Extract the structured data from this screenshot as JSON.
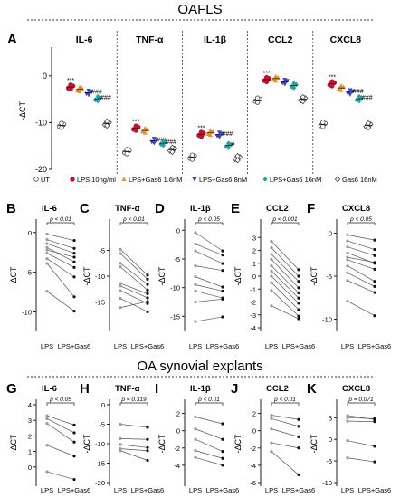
{
  "figure": {
    "section_top": "OAFLS",
    "section_bottom": "OA synovial explants"
  },
  "colors": {
    "ut": "#444444",
    "lps": "#c8102e",
    "lps_gas6_low": "#f08a24",
    "lps_gas6_mid": "#3a3fd0",
    "lps_gas6_high": "#1aa6a0",
    "gas6": "#444444",
    "paired_line": "#555555",
    "paired_lps": "#9a9a9a",
    "paired_gas6": "#111111"
  },
  "chart_data": [
    {
      "panel": "A",
      "type": "scatter",
      "ylabel": "-ΔCT",
      "ylim": [
        -20,
        5
      ],
      "yticks": [
        0,
        -10,
        -20
      ],
      "categories": [
        "UT",
        "LPS 10ng/ml",
        "LPS+Gas6 1.6nM",
        "LPS+Gas6 8nM",
        "LPS+Gas6 16nM",
        "Gas6 16nM"
      ],
      "legend": [
        "UT",
        "LPS 10ng/ml",
        "LPS+Gas6 1.6nM",
        "LPS+Gas6 8nM",
        "LPS+Gas6 16nM",
        "Gas6 16nM"
      ],
      "genes": [
        {
          "name": "IL-6",
          "values": [
            -10.6,
            -2.4,
            -2.9,
            -3.6,
            -4.9,
            -10.2
          ],
          "annotations": [
            "",
            "***",
            "",
            "###",
            "###",
            ""
          ]
        },
        {
          "name": "TNF-α",
          "values": [
            -16.2,
            -11.2,
            -11.7,
            -13.9,
            -14.4,
            -15.8
          ],
          "annotations": [
            "",
            "***",
            "",
            "###",
            "###",
            ""
          ]
        },
        {
          "name": "IL-1β",
          "values": [
            -17.4,
            -12.5,
            -12.2,
            -12.6,
            -14.9,
            -17.6
          ],
          "annotations": [
            "",
            "***",
            "",
            "###",
            "#",
            ""
          ]
        },
        {
          "name": "CCL2",
          "values": [
            -5.2,
            -0.8,
            -0.6,
            -1.3,
            -2.1,
            -5.0
          ],
          "annotations": [
            "",
            "***",
            "",
            "",
            "",
            ""
          ]
        },
        {
          "name": "CXCL8",
          "values": [
            -10.4,
            -1.7,
            -2.6,
            -3.5,
            -4.9,
            -10.6
          ],
          "annotations": [
            "",
            "***",
            "",
            "###",
            "###",
            ""
          ]
        }
      ]
    },
    {
      "panel": "B",
      "type": "line",
      "title": "IL-6",
      "ylabel": "-ΔCT",
      "categories": [
        "LPS",
        "LPS+Gas6"
      ],
      "pvalue": "p < 0.01",
      "ylim": [
        -12,
        1
      ],
      "yticks": [
        0,
        -5,
        -10
      ],
      "pairs": [
        [
          -0.2,
          -1.0
        ],
        [
          -0.9,
          -2.0
        ],
        [
          -1.4,
          -2.6
        ],
        [
          -1.9,
          -3.7
        ],
        [
          -2.6,
          -4.4
        ],
        [
          -3.3,
          -5.6
        ],
        [
          -3.9,
          -8.1
        ],
        [
          -7.4,
          -9.9
        ],
        [
          -2.2,
          -3.1
        ]
      ]
    },
    {
      "panel": "C",
      "type": "line",
      "title": "TNF-α",
      "ylabel": "-ΔCT",
      "categories": [
        "LPS",
        "LPS+Gas6"
      ],
      "pvalue": "p < 0.01",
      "ylim": [
        -20,
        0
      ],
      "yticks": [
        -5,
        -10,
        -15
      ],
      "pairs": [
        [
          -4.8,
          -9.8
        ],
        [
          -5.6,
          -10.6
        ],
        [
          -7.5,
          -11.6
        ],
        [
          -8.2,
          -12.7
        ],
        [
          -11.4,
          -13.4
        ],
        [
          -11.9,
          -14.2
        ],
        [
          -12.8,
          -15.3
        ],
        [
          -14.3,
          -16.9
        ],
        [
          -16.1,
          -14.9
        ]
      ]
    },
    {
      "panel": "D",
      "type": "line",
      "title": "IL-1β",
      "ylabel": "-ΔCT",
      "categories": [
        "LPS",
        "LPS+Gas6"
      ],
      "pvalue": "p < 0.05",
      "ylim": [
        -17,
        1
      ],
      "yticks": [
        0,
        -5,
        -10,
        -15
      ],
      "pairs": [
        [
          -0.4,
          -3.6
        ],
        [
          -2.4,
          -4.3
        ],
        [
          -3.6,
          -5.8
        ],
        [
          -6.2,
          -7.0
        ],
        [
          -8.1,
          -9.9
        ],
        [
          -9.5,
          -10.6
        ],
        [
          -10.6,
          -11.8
        ],
        [
          -12.5,
          -12.0
        ],
        [
          -15.9,
          -15.1
        ]
      ]
    },
    {
      "panel": "E",
      "type": "line",
      "title": "CCL2",
      "ylabel": "-ΔCT",
      "categories": [
        "LPS",
        "LPS+Gas6"
      ],
      "pvalue": "p < 0.001",
      "ylim": [
        -4,
        4
      ],
      "yticks": [
        3,
        2,
        1,
        0,
        -1,
        -2,
        -3,
        -4
      ],
      "pairs": [
        [
          2.7,
          0.5
        ],
        [
          2.2,
          0.0
        ],
        [
          1.7,
          -0.4
        ],
        [
          1.3,
          -0.9
        ],
        [
          0.8,
          -1.3
        ],
        [
          0.4,
          -1.7
        ],
        [
          0.0,
          -2.1
        ],
        [
          -0.5,
          -2.6
        ],
        [
          -1.1,
          -3.1
        ],
        [
          -2.3,
          -3.3
        ]
      ]
    },
    {
      "panel": "F",
      "type": "line",
      "title": "CXCL8",
      "ylabel": "-ΔCT",
      "categories": [
        "LPS",
        "LPS+Gas6"
      ],
      "pvalue": "p < 0.05",
      "ylim": [
        -11,
        1
      ],
      "yticks": [
        0,
        -5,
        -10
      ],
      "pairs": [
        [
          -0.2,
          -0.8
        ],
        [
          -0.9,
          -1.9
        ],
        [
          -1.6,
          -2.6
        ],
        [
          -2.3,
          -3.5
        ],
        [
          -3.1,
          -4.2
        ],
        [
          -3.8,
          -5.6
        ],
        [
          -4.6,
          -6.2
        ],
        [
          -5.5,
          -6.9
        ],
        [
          -7.9,
          -9.6
        ],
        [
          -2.8,
          -3.4
        ]
      ]
    },
    {
      "panel": "G",
      "type": "line",
      "title": "IL-6",
      "ylabel": "-ΔCT",
      "categories": [
        "LPS",
        "LPS+Gas6"
      ],
      "pvalue": "p < 0.05",
      "ylim": [
        -1,
        4
      ],
      "yticks": [
        4,
        3,
        2,
        1,
        0
      ],
      "pairs": [
        [
          3.3,
          2.7
        ],
        [
          3.1,
          2.2
        ],
        [
          2.8,
          1.6
        ],
        [
          1.4,
          0.7
        ],
        [
          -0.3,
          -0.8
        ]
      ]
    },
    {
      "panel": "H",
      "type": "line",
      "title": "TNF-α",
      "ylabel": "-ΔCT",
      "categories": [
        "LPS",
        "LPS+Gas6"
      ],
      "pvalue": "p = 0.319",
      "ylim": [
        -20,
        0
      ],
      "yticks": [
        0,
        -5,
        -10,
        -15,
        -20
      ],
      "pairs": [
        [
          -5.0,
          -5.8
        ],
        [
          -8.7,
          -8.9
        ],
        [
          -10.2,
          -11.0
        ],
        [
          -11.3,
          -11.8
        ],
        [
          -11.8,
          -14.3
        ]
      ]
    },
    {
      "panel": "I",
      "type": "line",
      "title": "IL-1β",
      "ylabel": "-ΔCT",
      "categories": [
        "LPS",
        "LPS+Gas6"
      ],
      "pvalue": "p < 0.01",
      "ylim": [
        -6,
        3
      ],
      "yticks": [
        2,
        0,
        -2,
        -4
      ],
      "pairs": [
        [
          1.6,
          0.8
        ],
        [
          0.2,
          -1.0
        ],
        [
          -1.0,
          -2.4
        ],
        [
          -2.3,
          -3.2
        ],
        [
          -3.1,
          -4.0
        ]
      ]
    },
    {
      "panel": "J",
      "type": "line",
      "title": "CCL2",
      "ylabel": "-ΔCT",
      "categories": [
        "LPS",
        "LPS+Gas6"
      ],
      "pvalue": "p < 0.01",
      "ylim": [
        -6,
        3
      ],
      "yticks": [
        2,
        0,
        -2,
        -4,
        -6
      ],
      "pairs": [
        [
          1.8,
          1.3
        ],
        [
          1.4,
          0.5
        ],
        [
          0.2,
          -0.7
        ],
        [
          -1.4,
          -2.0
        ],
        [
          -2.4,
          -5.1
        ]
      ]
    },
    {
      "panel": "K",
      "type": "line",
      "title": "CXCL8",
      "ylabel": "-ΔCT",
      "categories": [
        "LPS",
        "LPS+Gas6"
      ],
      "pvalue": "p = 0.071",
      "ylim": [
        -10,
        8
      ],
      "yticks": [
        5,
        0,
        -5,
        -10
      ],
      "pairs": [
        [
          5.5,
          4.6
        ],
        [
          5.0,
          4.8
        ],
        [
          4.2,
          4.1
        ],
        [
          -0.3,
          -1.6
        ],
        [
          -4.3,
          -5.2
        ]
      ]
    }
  ]
}
